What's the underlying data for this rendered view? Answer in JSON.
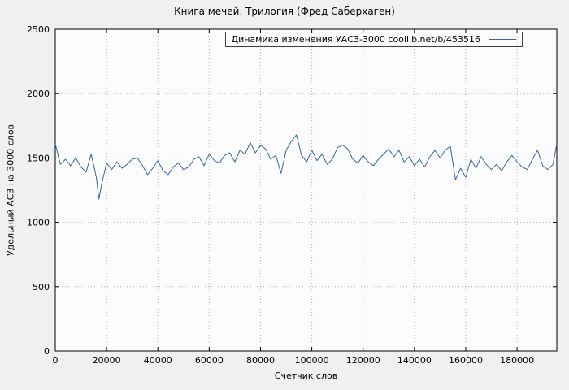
{
  "colors": {
    "page_bg": "#f0f0f0",
    "plot_bg": "#fcfcfc",
    "grid": "#b0b0b0",
    "border": "#000000",
    "text": "#000000",
    "line": "#3465a4"
  },
  "chart_data": {
    "type": "line",
    "title": "Книга мечей. Трилогия (Фред Саберхаген)",
    "xlabel": "Счетчик слов",
    "ylabel": "Удельный АСЗ на 3000 слов",
    "xlim": [
      0,
      195500
    ],
    "ylim": [
      0,
      2500
    ],
    "xticks": [
      0,
      20000,
      40000,
      60000,
      80000,
      100000,
      120000,
      140000,
      160000,
      180000
    ],
    "yticks": [
      0,
      500,
      1000,
      1500,
      2000,
      2500
    ],
    "grid": true,
    "legend_position": "top-right-inside",
    "series": [
      {
        "name": "Динамика изменения УАСЗ-3000  coollib.net/b/453516",
        "color": "#3465a4",
        "x": [
          0,
          2000,
          4000,
          6000,
          8000,
          10000,
          12000,
          14000,
          16000,
          17000,
          18000,
          20000,
          22000,
          24000,
          26000,
          28000,
          30000,
          32000,
          34000,
          36000,
          38000,
          40000,
          42000,
          44000,
          46000,
          48000,
          50000,
          52000,
          54000,
          56000,
          58000,
          60000,
          62000,
          64000,
          66000,
          68000,
          70000,
          72000,
          74000,
          76000,
          78000,
          80000,
          82000,
          84000,
          86000,
          88000,
          90000,
          92000,
          94000,
          96000,
          98000,
          100000,
          102000,
          104000,
          106000,
          108000,
          110000,
          112000,
          114000,
          116000,
          118000,
          120000,
          122000,
          124000,
          126000,
          128000,
          130000,
          132000,
          134000,
          136000,
          138000,
          140000,
          142000,
          144000,
          146000,
          148000,
          150000,
          152000,
          154000,
          156000,
          158000,
          160000,
          162000,
          164000,
          166000,
          168000,
          170000,
          172000,
          174000,
          176000,
          178000,
          180000,
          182000,
          184000,
          186000,
          188000,
          190000,
          192000,
          194000,
          195300
        ],
        "y": [
          1610,
          1450,
          1490,
          1440,
          1500,
          1430,
          1390,
          1530,
          1350,
          1180,
          1290,
          1460,
          1410,
          1470,
          1420,
          1450,
          1490,
          1500,
          1440,
          1370,
          1420,
          1480,
          1400,
          1370,
          1430,
          1460,
          1410,
          1430,
          1490,
          1510,
          1440,
          1530,
          1480,
          1460,
          1520,
          1540,
          1470,
          1560,
          1530,
          1620,
          1540,
          1600,
          1570,
          1490,
          1520,
          1380,
          1560,
          1630,
          1680,
          1520,
          1470,
          1560,
          1480,
          1530,
          1450,
          1490,
          1580,
          1600,
          1570,
          1490,
          1460,
          1520,
          1470,
          1440,
          1490,
          1530,
          1570,
          1510,
          1560,
          1470,
          1510,
          1440,
          1490,
          1430,
          1510,
          1560,
          1500,
          1560,
          1590,
          1330,
          1420,
          1350,
          1490,
          1420,
          1510,
          1450,
          1410,
          1450,
          1400,
          1470,
          1520,
          1470,
          1430,
          1410,
          1490,
          1560,
          1440,
          1410,
          1450,
          1590
        ]
      }
    ]
  }
}
